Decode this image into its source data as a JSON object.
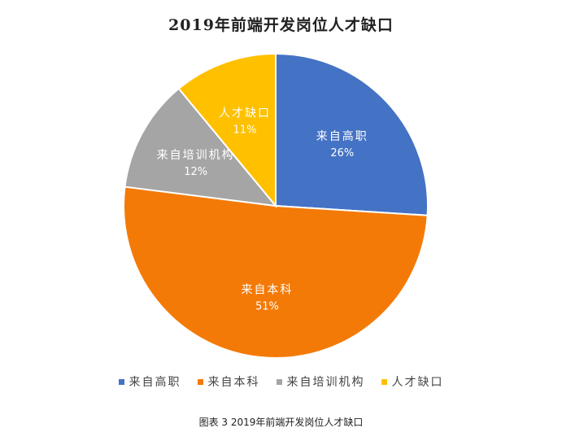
{
  "chart_data": {
    "type": "pie",
    "title": "2019年前端开发岗位人才缺口",
    "categories": [
      "来自高职",
      "来自本科",
      "来自培训机构",
      "人才缺口"
    ],
    "values": [
      26,
      51,
      12,
      11
    ],
    "value_labels": [
      "26%",
      "51%",
      "12%",
      "11%"
    ],
    "colors": [
      "#4472C4",
      "#F47A07",
      "#A5A5A5",
      "#FFC000"
    ],
    "legend_position": "bottom",
    "start_angle": "12 o'clock",
    "direction": "clockwise"
  },
  "caption": "图表 3  2019年前端开发岗位人才缺口"
}
